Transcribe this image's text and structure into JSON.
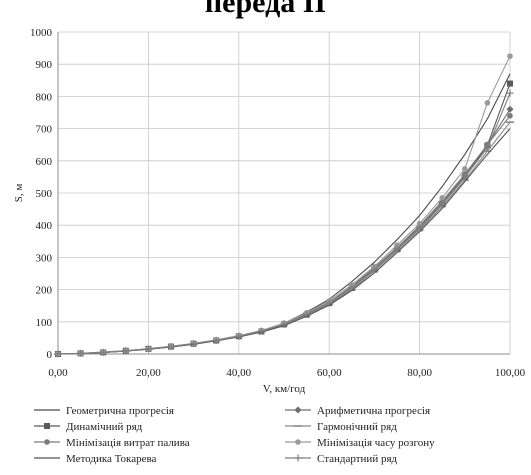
{
  "chart_data": {
    "type": "line",
    "title": "переда ІІ",
    "xlabel": "V, км/год",
    "ylabel": "S, м",
    "xlim": [
      0,
      100
    ],
    "ylim": [
      0,
      1000
    ],
    "x_ticks": [
      "0,00",
      "20,00",
      "40,00",
      "60,00",
      "80,00",
      "100,00"
    ],
    "y_ticks": [
      "0",
      "100",
      "200",
      "300",
      "400",
      "500",
      "600",
      "700",
      "800",
      "900",
      "1000"
    ],
    "grid": true,
    "legend_position": "bottom",
    "series": [
      {
        "name": "Геометрична прогресія",
        "marker": "none",
        "x": [
          0,
          5,
          10,
          15,
          20,
          25,
          30,
          35,
          40,
          45,
          50,
          55,
          60,
          65,
          70,
          75,
          80,
          85,
          90,
          95,
          100
        ],
        "y": [
          0,
          2,
          5,
          9,
          15,
          22,
          31,
          42,
          55,
          70,
          95,
          130,
          170,
          225,
          285,
          355,
          430,
          520,
          620,
          730,
          870
        ]
      },
      {
        "name": "Арифметична прогресія",
        "marker": "diamond",
        "x": [
          0,
          5,
          10,
          15,
          20,
          25,
          30,
          35,
          40,
          45,
          50,
          55,
          60,
          65,
          70,
          75,
          80,
          85,
          90,
          95,
          100
        ],
        "y": [
          0,
          2,
          6,
          10,
          16,
          23,
          32,
          43,
          56,
          72,
          94,
          125,
          160,
          210,
          268,
          330,
          395,
          470,
          555,
          650,
          760
        ]
      },
      {
        "name": "Динамічний ряд",
        "marker": "square",
        "x": [
          0,
          5,
          10,
          15,
          20,
          25,
          30,
          35,
          40,
          45,
          50,
          55,
          60,
          65,
          70,
          75,
          80,
          85,
          90,
          95,
          100
        ],
        "y": [
          0,
          2,
          5,
          10,
          16,
          23,
          32,
          42,
          55,
          70,
          92,
          122,
          158,
          205,
          262,
          325,
          390,
          465,
          548,
          648,
          840
        ]
      },
      {
        "name": "Гармонічний ряд",
        "marker": "dash",
        "x": [
          0,
          5,
          10,
          15,
          20,
          25,
          30,
          35,
          40,
          45,
          50,
          55,
          60,
          65,
          70,
          75,
          80,
          85,
          90,
          95,
          100
        ],
        "y": [
          0,
          2,
          5,
          10,
          15,
          22,
          31,
          41,
          54,
          69,
          90,
          120,
          155,
          200,
          258,
          320,
          385,
          458,
          540,
          630,
          720
        ]
      },
      {
        "name": "Мінімізація витрат палива",
        "marker": "circle",
        "x": [
          0,
          5,
          10,
          15,
          20,
          25,
          30,
          35,
          40,
          45,
          50,
          55,
          60,
          65,
          70,
          75,
          80,
          85,
          90,
          95,
          100
        ],
        "y": [
          0,
          2,
          5,
          10,
          16,
          23,
          32,
          43,
          56,
          72,
          93,
          124,
          160,
          207,
          265,
          330,
          398,
          475,
          558,
          650,
          740
        ]
      },
      {
        "name": "Мінімізація часу розгону",
        "marker": "circle",
        "x": [
          0,
          5,
          10,
          15,
          20,
          25,
          30,
          35,
          40,
          45,
          50,
          55,
          60,
          65,
          70,
          75,
          80,
          85,
          90,
          95,
          100
        ],
        "y": [
          0,
          2,
          6,
          10,
          16,
          24,
          33,
          44,
          57,
          73,
          96,
          128,
          165,
          215,
          272,
          338,
          405,
          485,
          575,
          780,
          925
        ]
      },
      {
        "name": "Методика Токарева",
        "marker": "none",
        "x": [
          0,
          5,
          10,
          15,
          20,
          25,
          30,
          35,
          40,
          45,
          50,
          55,
          60,
          65,
          70,
          75,
          80,
          85,
          90,
          95,
          100
        ],
        "y": [
          0,
          2,
          5,
          9,
          15,
          22,
          30,
          41,
          53,
          68,
          88,
          117,
          152,
          197,
          252,
          315,
          380,
          452,
          535,
          620,
          700
        ]
      },
      {
        "name": "Стандартний ряд",
        "marker": "plus",
        "x": [
          0,
          5,
          10,
          15,
          20,
          25,
          30,
          35,
          40,
          45,
          50,
          55,
          60,
          65,
          70,
          75,
          80,
          85,
          90,
          95,
          100
        ],
        "y": [
          0,
          2,
          5,
          10,
          16,
          23,
          32,
          42,
          55,
          71,
          92,
          123,
          158,
          205,
          262,
          326,
          392,
          468,
          550,
          640,
          810
        ]
      }
    ],
    "colors": {
      "plot_area": "#ffffff",
      "grid": "#c8c8c8",
      "axis": "#8c8c8c",
      "series": [
        "#4a4a4a",
        "#6e6e6e",
        "#5a5a5a",
        "#8a8a8a",
        "#7a7a7a",
        "#9a9a9a",
        "#555555",
        "#7f7f7f"
      ]
    }
  }
}
